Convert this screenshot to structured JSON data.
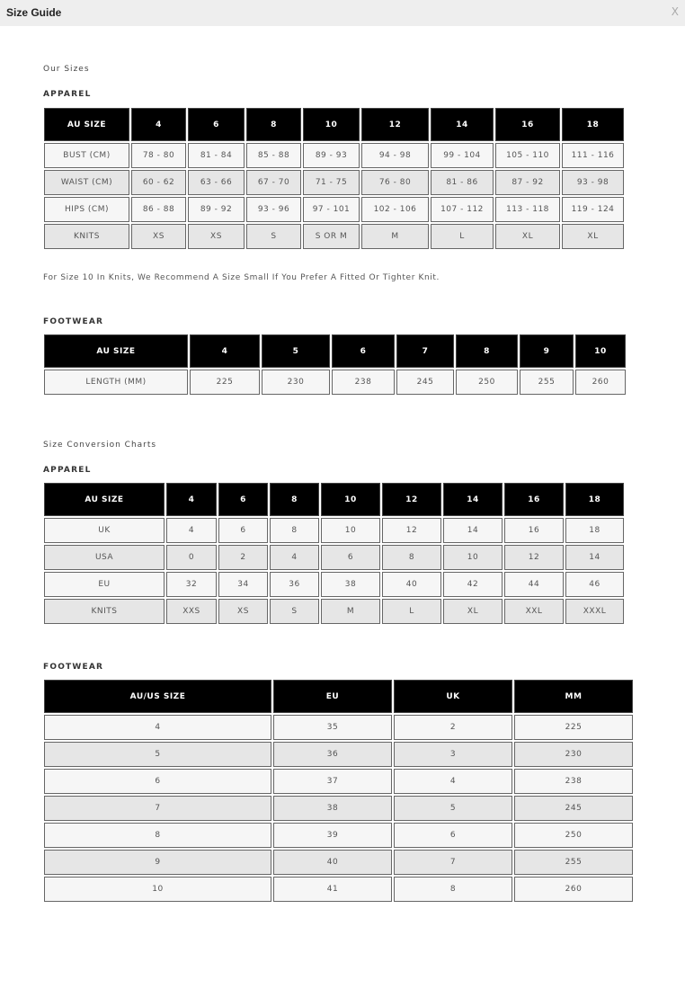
{
  "window": {
    "title": "Size Guide",
    "close_label": "X"
  },
  "our_sizes": {
    "heading": "Our Sizes",
    "apparel": {
      "heading": "APPAREL",
      "headers": [
        "AU SIZE",
        "4",
        "6",
        "8",
        "10",
        "12",
        "14",
        "16",
        "18"
      ],
      "rows": [
        [
          "BUST (CM)",
          "78 - 80",
          "81 - 84",
          "85 - 88",
          "89 - 93",
          "94 - 98",
          "99 - 104",
          "105 - 110",
          "111 - 116"
        ],
        [
          "WAIST (CM)",
          "60 - 62",
          "63 - 66",
          "67 - 70",
          "71 - 75",
          "76 - 80",
          "81 - 86",
          "87 - 92",
          "93 - 98"
        ],
        [
          "HIPS (CM)",
          "86 - 88",
          "89 - 92",
          "93 - 96",
          "97 - 101",
          "102 - 106",
          "107 - 112",
          "113 - 118",
          "119 - 124"
        ],
        [
          "KNITS",
          "XS",
          "XS",
          "S",
          "S OR M",
          "M",
          "L",
          "XL",
          "XL"
        ]
      ],
      "note": "For Size 10 In Knits, We Recommend A Size Small If You Prefer A Fitted Or Tighter Knit."
    },
    "footwear": {
      "heading": "FOOTWEAR",
      "headers": [
        "AU SIZE",
        "4",
        "5",
        "6",
        "7",
        "8",
        "9",
        "10"
      ],
      "rows": [
        [
          "LENGTH (MM)",
          "225",
          "230",
          "238",
          "245",
          "250",
          "255",
          "260"
        ]
      ]
    }
  },
  "conversion": {
    "heading": "Size Conversion Charts",
    "apparel": {
      "heading": "APPAREL",
      "headers": [
        "AU SIZE",
        "4",
        "6",
        "8",
        "10",
        "12",
        "14",
        "16",
        "18"
      ],
      "rows": [
        [
          "UK",
          "4",
          "6",
          "8",
          "10",
          "12",
          "14",
          "16",
          "18"
        ],
        [
          "USA",
          "0",
          "2",
          "4",
          "6",
          "8",
          "10",
          "12",
          "14"
        ],
        [
          "EU",
          "32",
          "34",
          "36",
          "38",
          "40",
          "42",
          "44",
          "46"
        ],
        [
          "KNITS",
          "XXS",
          "XS",
          "S",
          "M",
          "L",
          "XL",
          "XXL",
          "XXXL"
        ]
      ]
    },
    "footwear": {
      "heading": "FOOTWEAR",
      "headers": [
        "AU/US SIZE",
        "EU",
        "UK",
        "MM"
      ],
      "rows": [
        [
          "4",
          "35",
          "2",
          "225"
        ],
        [
          "5",
          "36",
          "3",
          "230"
        ],
        [
          "6",
          "37",
          "4",
          "238"
        ],
        [
          "7",
          "38",
          "5",
          "245"
        ],
        [
          "8",
          "39",
          "6",
          "250"
        ],
        [
          "9",
          "40",
          "7",
          "255"
        ],
        [
          "10",
          "41",
          "8",
          "260"
        ]
      ]
    }
  }
}
